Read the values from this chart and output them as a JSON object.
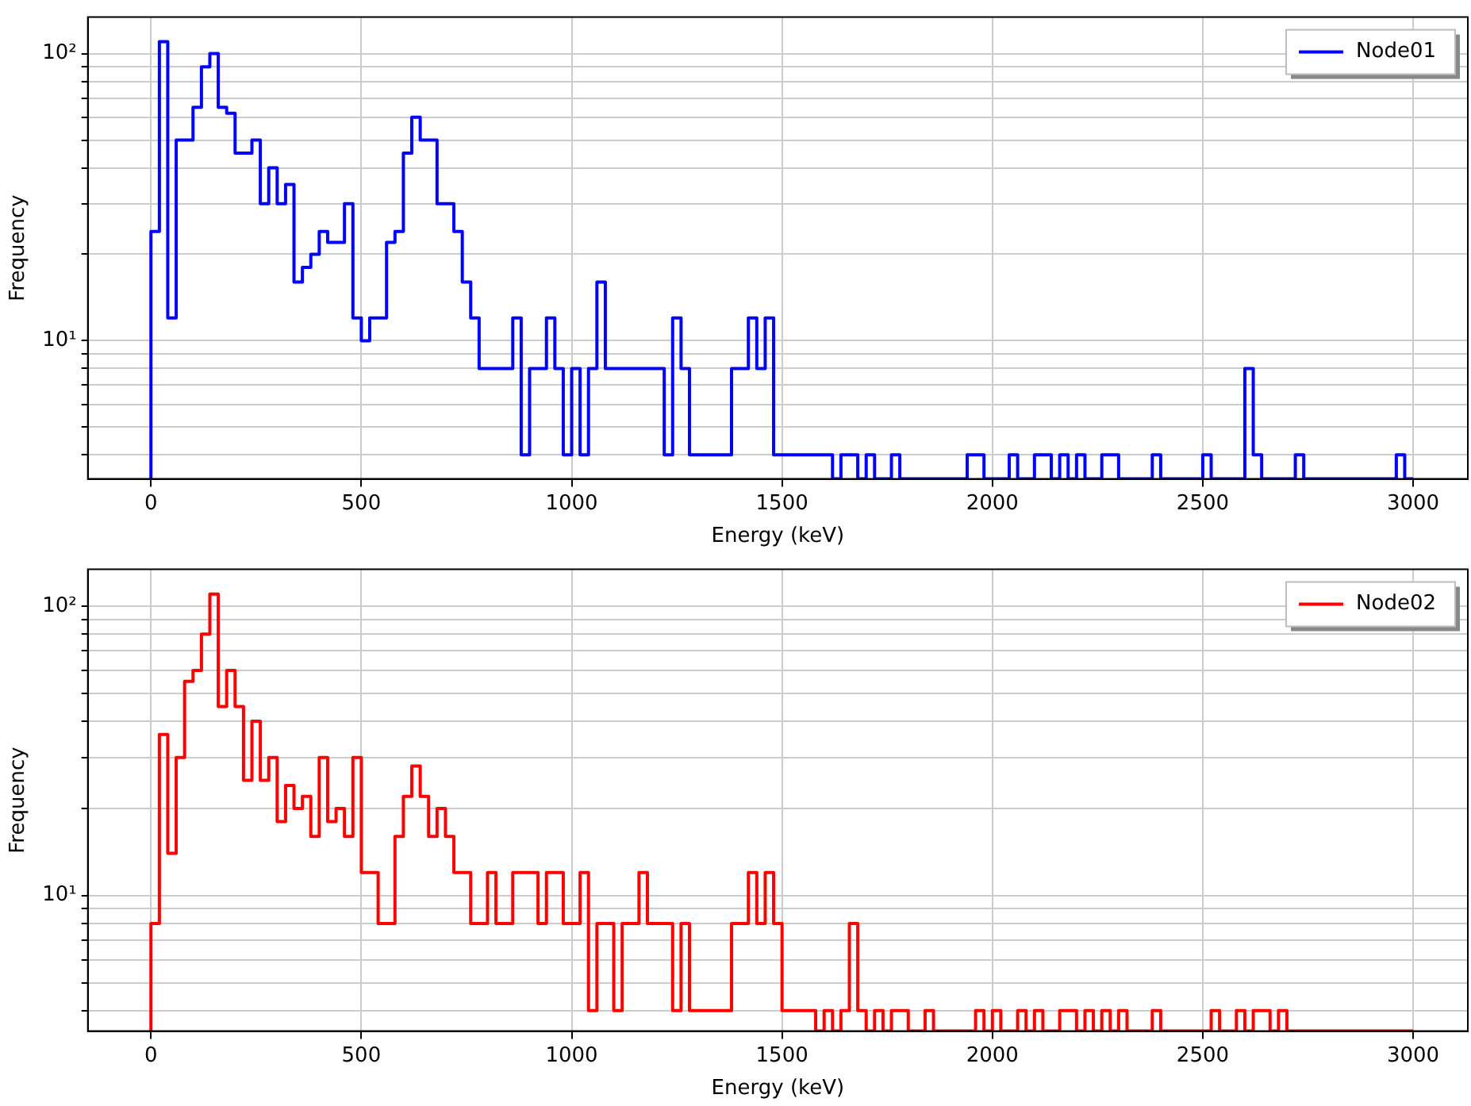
{
  "chart_data": [
    {
      "type": "histogram",
      "xlabel": "Energy (keV)",
      "ylabel": "Frequency",
      "log": true,
      "grid": true,
      "legend": "top right",
      "xlim": [
        -150,
        3130
      ],
      "xticks": [
        0,
        500,
        1000,
        1500,
        2000,
        2500,
        3000
      ],
      "ylim": [
        3.3,
        134
      ],
      "yticks": [
        {
          "value": 4,
          "label": null
        },
        {
          "value": 5,
          "label": null
        },
        {
          "value": 6,
          "label": null
        },
        {
          "value": 7,
          "label": null
        },
        {
          "value": 8,
          "label": null
        },
        {
          "value": 9,
          "label": null
        },
        {
          "value": 10,
          "label": "10¹"
        },
        {
          "value": 20,
          "label": null
        },
        {
          "value": 30,
          "label": null
        },
        {
          "value": 40,
          "label": null
        },
        {
          "value": 50,
          "label": null
        },
        {
          "value": 60,
          "label": null
        },
        {
          "value": 70,
          "label": null
        },
        {
          "value": 80,
          "label": null
        },
        {
          "value": 90,
          "label": null
        },
        {
          "value": 100,
          "label": "10²"
        }
      ],
      "bins": [
        0,
        20,
        40,
        60,
        80,
        100,
        120,
        140,
        160,
        180,
        200,
        220,
        240,
        260,
        280,
        300,
        320,
        340,
        360,
        380,
        400,
        420,
        440,
        460,
        480,
        500,
        520,
        540,
        560,
        580,
        600,
        620,
        640,
        660,
        680,
        700,
        720,
        740,
        760,
        780,
        800,
        820,
        840,
        860,
        880,
        900,
        920,
        940,
        960,
        980,
        1000,
        1020,
        1040,
        1060,
        1080,
        1100,
        1120,
        1140,
        1160,
        1180,
        1200,
        1220,
        1240,
        1260,
        1280,
        1300,
        1320,
        1340,
        1360,
        1380,
        1400,
        1420,
        1440,
        1460,
        1480,
        1500,
        1520,
        1540,
        1560,
        1580,
        1600,
        1620,
        1640,
        1660,
        1680,
        1700,
        1720,
        1740,
        1760,
        1780,
        1800,
        1820,
        1840,
        1860,
        1880,
        1900,
        1920,
        1940,
        1960,
        1980,
        2000,
        2020,
        2040,
        2060,
        2080,
        2100,
        2120,
        2140,
        2160,
        2180,
        2200,
        2220,
        2240,
        2260,
        2280,
        2300,
        2320,
        2340,
        2360,
        2380,
        2400,
        2420,
        2440,
        2460,
        2480,
        2500,
        2520,
        2540,
        2560,
        2580,
        2600,
        2620,
        2640,
        2660,
        2680,
        2700,
        2720,
        2740,
        2760,
        2780,
        2800,
        2820,
        2840,
        2860,
        2880,
        2900,
        2920,
        2940,
        2960,
        2980,
        3000
      ],
      "series": [
        {
          "name": "Node01",
          "color": "#0000ff",
          "values": [
            24,
            110,
            12,
            50,
            50,
            65,
            90,
            100,
            65,
            62,
            45,
            45,
            50,
            30,
            40,
            30,
            35,
            16,
            18,
            20,
            24,
            22,
            22,
            30,
            12,
            10,
            12,
            12,
            22,
            24,
            45,
            60,
            50,
            50,
            30,
            30,
            24,
            16,
            12,
            8,
            8,
            8,
            8,
            12,
            4,
            8,
            8,
            12,
            8,
            4,
            8,
            4,
            8,
            16,
            8,
            8,
            8,
            8,
            8,
            8,
            8,
            4,
            12,
            8,
            4,
            4,
            4,
            4,
            4,
            8,
            8,
            12,
            8,
            12,
            4,
            4,
            4,
            4,
            4,
            4,
            4,
            null,
            4,
            4,
            null,
            4,
            null,
            null,
            4,
            null,
            null,
            null,
            null,
            null,
            null,
            null,
            null,
            4,
            4,
            null,
            null,
            null,
            4,
            null,
            null,
            4,
            4,
            null,
            4,
            null,
            4,
            null,
            null,
            4,
            4,
            null,
            null,
            null,
            null,
            4,
            null,
            null,
            null,
            null,
            null,
            4,
            null,
            null,
            null,
            null,
            8,
            4,
            null,
            null,
            null,
            null,
            4,
            null,
            null,
            null,
            null,
            null,
            null,
            null,
            null,
            null,
            null,
            null,
            4,
            null
          ]
        }
      ]
    },
    {
      "type": "histogram",
      "xlabel": "Energy (keV)",
      "ylabel": "Frequency",
      "log": true,
      "grid": true,
      "legend": "top right",
      "xlim": [
        -150,
        3130
      ],
      "xticks": [
        0,
        500,
        1000,
        1500,
        2000,
        2500,
        3000
      ],
      "ylim": [
        3.4,
        134
      ],
      "yticks": [
        {
          "value": 4,
          "label": null
        },
        {
          "value": 5,
          "label": null
        },
        {
          "value": 6,
          "label": null
        },
        {
          "value": 7,
          "label": null
        },
        {
          "value": 8,
          "label": null
        },
        {
          "value": 9,
          "label": null
        },
        {
          "value": 10,
          "label": "10¹"
        },
        {
          "value": 20,
          "label": null
        },
        {
          "value": 30,
          "label": null
        },
        {
          "value": 40,
          "label": null
        },
        {
          "value": 50,
          "label": null
        },
        {
          "value": 60,
          "label": null
        },
        {
          "value": 70,
          "label": null
        },
        {
          "value": 80,
          "label": null
        },
        {
          "value": 90,
          "label": null
        },
        {
          "value": 100,
          "label": "10²"
        }
      ],
      "bins": [
        0,
        20,
        40,
        60,
        80,
        100,
        120,
        140,
        160,
        180,
        200,
        220,
        240,
        260,
        280,
        300,
        320,
        340,
        360,
        380,
        400,
        420,
        440,
        460,
        480,
        500,
        520,
        540,
        560,
        580,
        600,
        620,
        640,
        660,
        680,
        700,
        720,
        740,
        760,
        780,
        800,
        820,
        840,
        860,
        880,
        900,
        920,
        940,
        960,
        980,
        1000,
        1020,
        1040,
        1060,
        1080,
        1100,
        1120,
        1140,
        1160,
        1180,
        1200,
        1220,
        1240,
        1260,
        1280,
        1300,
        1320,
        1340,
        1360,
        1380,
        1400,
        1420,
        1440,
        1460,
        1480,
        1500,
        1520,
        1540,
        1560,
        1580,
        1600,
        1620,
        1640,
        1660,
        1680,
        1700,
        1720,
        1740,
        1760,
        1780,
        1800,
        1820,
        1840,
        1860,
        1880,
        1900,
        1920,
        1940,
        1960,
        1980,
        2000,
        2020,
        2040,
        2060,
        2080,
        2100,
        2120,
        2140,
        2160,
        2180,
        2200,
        2220,
        2240,
        2260,
        2280,
        2300,
        2320,
        2340,
        2360,
        2380,
        2400,
        2420,
        2440,
        2460,
        2480,
        2500,
        2520,
        2540,
        2560,
        2580,
        2600,
        2620,
        2640,
        2660,
        2680,
        2700,
        2720,
        2740,
        2760,
        2780,
        2800,
        2820,
        2840,
        2860,
        2880,
        2900,
        2920,
        2940,
        2960,
        2980,
        3000
      ],
      "series": [
        {
          "name": "Node02",
          "color": "#ff0000",
          "values": [
            8,
            36,
            14,
            30,
            55,
            60,
            80,
            110,
            45,
            60,
            45,
            25,
            40,
            25,
            30,
            18,
            24,
            20,
            22,
            16,
            30,
            18,
            20,
            16,
            30,
            12,
            12,
            8,
            8,
            16,
            22,
            28,
            22,
            16,
            20,
            16,
            12,
            12,
            8,
            8,
            12,
            8,
            8,
            12,
            12,
            12,
            8,
            12,
            12,
            8,
            8,
            12,
            4,
            8,
            8,
            4,
            8,
            8,
            12,
            8,
            8,
            8,
            4,
            8,
            4,
            4,
            4,
            4,
            4,
            8,
            8,
            12,
            8,
            12,
            8,
            4,
            4,
            4,
            4,
            null,
            4,
            null,
            4,
            8,
            4,
            null,
            4,
            null,
            4,
            4,
            null,
            null,
            4,
            null,
            null,
            null,
            null,
            null,
            4,
            null,
            4,
            null,
            null,
            4,
            null,
            4,
            null,
            null,
            4,
            4,
            null,
            4,
            null,
            4,
            null,
            4,
            null,
            null,
            null,
            4,
            null,
            null,
            null,
            null,
            null,
            null,
            4,
            null,
            null,
            4,
            null,
            4,
            4,
            null,
            4,
            null,
            null,
            null,
            null,
            null,
            null,
            null,
            null,
            null,
            null,
            null,
            null,
            null,
            null,
            null
          ]
        }
      ]
    }
  ]
}
